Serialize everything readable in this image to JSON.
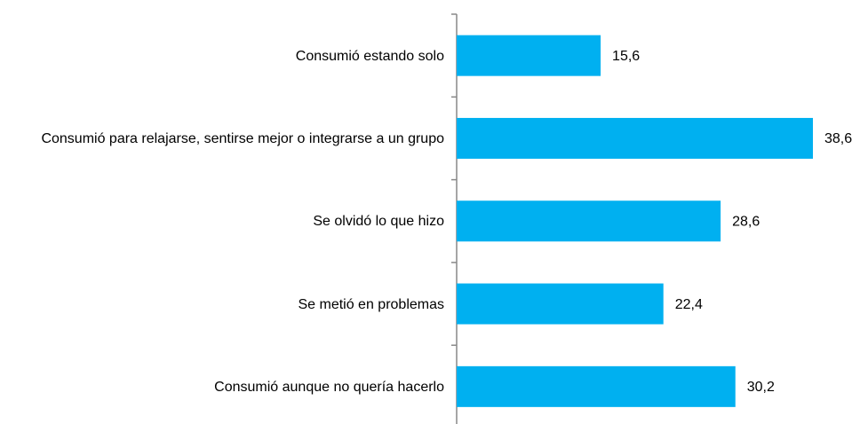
{
  "chart_data": {
    "type": "bar",
    "orientation": "horizontal",
    "categories": [
      "Consumió estando solo",
      "Consumió para relajarse, sentirse mejor o integrarse a un grupo",
      "Se olvidó lo que hizo",
      "Se metió en problemas",
      "Consumió aunque no quería hacerlo"
    ],
    "values": [
      15.6,
      38.6,
      28.6,
      22.4,
      30.2
    ],
    "value_labels": [
      "15,6",
      "38,6",
      "28,6",
      "22,4",
      "30,2"
    ],
    "color": "#00b0f0"
  }
}
